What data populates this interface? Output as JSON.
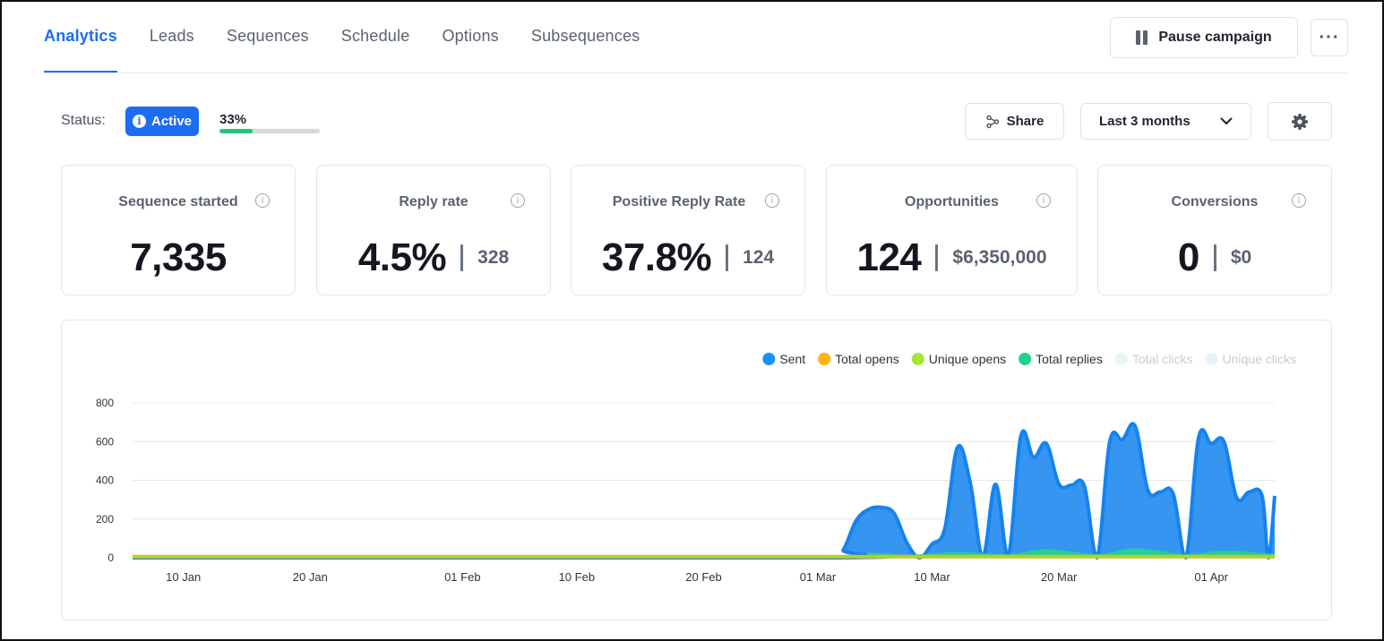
{
  "tabs": [
    {
      "label": "Analytics",
      "active": true
    },
    {
      "label": "Leads",
      "active": false
    },
    {
      "label": "Sequences",
      "active": false
    },
    {
      "label": "Schedule",
      "active": false
    },
    {
      "label": "Options",
      "active": false
    },
    {
      "label": "Subsequences",
      "active": false
    }
  ],
  "header": {
    "pause_label": "Pause campaign",
    "more_label": "···"
  },
  "status": {
    "label": "Status:",
    "badge": "Active",
    "progress_text": "33%",
    "progress_value": 0.33,
    "progress_color": "#1fc77a"
  },
  "toolbar": {
    "share_label": "Share",
    "range_label": "Last 3 months"
  },
  "stats": [
    {
      "title": "Sequence started",
      "value": "7,335",
      "secondary": ""
    },
    {
      "title": "Reply rate",
      "value": "4.5%",
      "secondary": "328"
    },
    {
      "title": "Positive Reply Rate",
      "value": "37.8%",
      "secondary": "124"
    },
    {
      "title": "Opportunities",
      "value": "124",
      "secondary": "$6,350,000"
    },
    {
      "title": "Conversions",
      "value": "0",
      "secondary": "$0"
    }
  ],
  "colors": {
    "accent": "#1c6df2",
    "sent": "#1890ff",
    "total_opens": "#fbb317",
    "unique_opens": "#a3e635",
    "total_replies": "#1fd38b"
  },
  "chart_data": {
    "type": "area",
    "legend_position": "top-right",
    "legend": [
      {
        "name": "Sent",
        "color": "#1890ff",
        "enabled": true
      },
      {
        "name": "Total opens",
        "color": "#fbb317",
        "enabled": true
      },
      {
        "name": "Unique opens",
        "color": "#a3e635",
        "enabled": true
      },
      {
        "name": "Total replies",
        "color": "#1fd38b",
        "enabled": true
      },
      {
        "name": "Total clicks",
        "color": "#e6f7f2",
        "enabled": false
      },
      {
        "name": "Unique clicks",
        "color": "#e6f4f7",
        "enabled": false
      }
    ],
    "ylim": [
      0,
      800
    ],
    "yticks": [
      "0",
      "200",
      "400",
      "600",
      "800"
    ],
    "grid": true,
    "xlim": [
      "2025-01-06",
      "2025-04-06"
    ],
    "xticks": [
      {
        "label": "10 Jan",
        "date": "2025-01-10"
      },
      {
        "label": "20 Jan",
        "date": "2025-01-20"
      },
      {
        "label": "01 Feb",
        "date": "2025-02-01"
      },
      {
        "label": "10 Feb",
        "date": "2025-02-10"
      },
      {
        "label": "20 Feb",
        "date": "2025-02-20"
      },
      {
        "label": "01 Mar",
        "date": "2025-03-01"
      },
      {
        "label": "10 Mar",
        "date": "2025-03-10"
      },
      {
        "label": "20 Mar",
        "date": "2025-03-20"
      },
      {
        "label": "01 Apr",
        "date": "2025-04-01"
      }
    ],
    "series": [
      {
        "name": "Sent",
        "points": [
          [
            "2025-01-06",
            0
          ],
          [
            "2025-03-02",
            0
          ],
          [
            "2025-03-03",
            40
          ],
          [
            "2025-03-04",
            190
          ],
          [
            "2025-03-05",
            250
          ],
          [
            "2025-03-06",
            260
          ],
          [
            "2025-03-07",
            230
          ],
          [
            "2025-03-08",
            80
          ],
          [
            "2025-03-09",
            0
          ],
          [
            "2025-03-10",
            70
          ],
          [
            "2025-03-11",
            150
          ],
          [
            "2025-03-12",
            570
          ],
          [
            "2025-03-13",
            390
          ],
          [
            "2025-03-14",
            10
          ],
          [
            "2025-03-15",
            380
          ],
          [
            "2025-03-16",
            10
          ],
          [
            "2025-03-17",
            630
          ],
          [
            "2025-03-18",
            520
          ],
          [
            "2025-03-19",
            590
          ],
          [
            "2025-03-20",
            380
          ],
          [
            "2025-03-21",
            375
          ],
          [
            "2025-03-22",
            370
          ],
          [
            "2025-03-23",
            0
          ],
          [
            "2025-03-24",
            600
          ],
          [
            "2025-03-25",
            610
          ],
          [
            "2025-03-26",
            680
          ],
          [
            "2025-03-27",
            350
          ],
          [
            "2025-03-28",
            340
          ],
          [
            "2025-03-29",
            330
          ],
          [
            "2025-03-30",
            0
          ],
          [
            "2025-03-31",
            620
          ],
          [
            "2025-04-01",
            590
          ],
          [
            "2025-04-02",
            600
          ],
          [
            "2025-04-03",
            310
          ],
          [
            "2025-04-04",
            340
          ],
          [
            "2025-04-05",
            320
          ],
          [
            "2025-04-05T12",
            0
          ],
          [
            "2025-04-06",
            320
          ]
        ]
      },
      {
        "name": "Total replies",
        "points": [
          [
            "2025-01-06",
            8
          ],
          [
            "2025-03-02",
            8
          ],
          [
            "2025-03-05",
            22
          ],
          [
            "2025-03-08",
            10
          ],
          [
            "2025-03-12",
            24
          ],
          [
            "2025-03-16",
            14
          ],
          [
            "2025-03-19",
            40
          ],
          [
            "2025-03-23",
            14
          ],
          [
            "2025-03-26",
            44
          ],
          [
            "2025-03-30",
            14
          ],
          [
            "2025-04-02",
            32
          ],
          [
            "2025-04-06",
            14
          ]
        ]
      },
      {
        "name": "Total opens",
        "points": [
          [
            "2025-01-06",
            6
          ],
          [
            "2025-04-06",
            6
          ]
        ]
      },
      {
        "name": "Unique opens",
        "points": [
          [
            "2025-01-06",
            4
          ],
          [
            "2025-04-06",
            4
          ]
        ]
      }
    ]
  }
}
